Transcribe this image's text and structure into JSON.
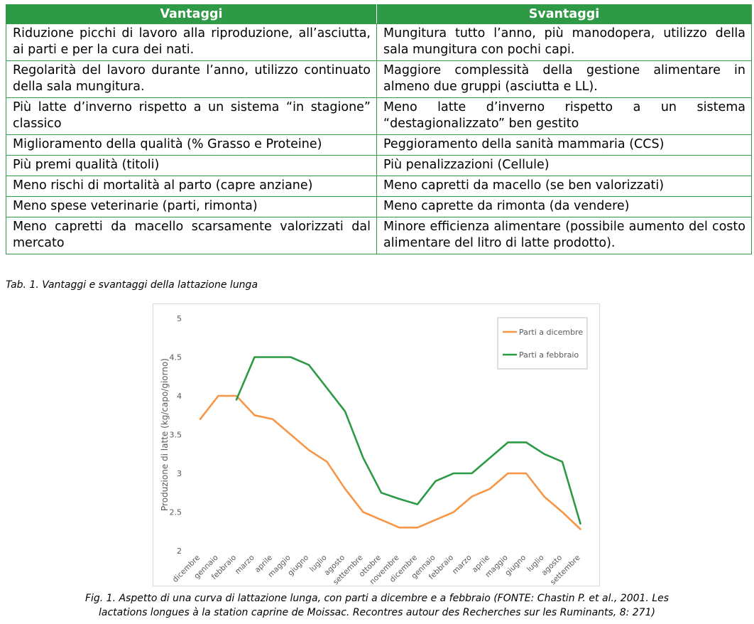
{
  "table": {
    "headers": [
      "Vantaggi",
      "Svantaggi"
    ],
    "rows": [
      [
        "Riduzione picchi di lavoro alla riproduzione, all’asciutta, ai parti e per la cura dei nati.",
        "Mungitura tutto l’anno, più manodopera, utilizzo della sala mungitura con pochi capi."
      ],
      [
        "Regolarità del lavoro durante l’anno, utilizzo continuato della sala mungitura.",
        "Maggiore complessità della gestione alimentare in almeno due gruppi (asciutta e LL)."
      ],
      [
        "Più latte d’inverno rispetto a un sistema “in stagione” classico",
        "Meno latte d’inverno rispetto a un sistema “destagionalizzato” ben gestito"
      ],
      [
        "Miglioramento della qualità (% Grasso e Proteine)",
        "Peggioramento della sanità mammaria (CCS)"
      ],
      [
        "Più premi qualità (titoli)",
        "Più penalizzazioni (Cellule)"
      ],
      [
        "Meno rischi di mortalità al parto (capre anziane)",
        "Meno capretti da macello (se ben valorizzati)"
      ],
      [
        "Meno spese veterinarie (parti, rimonta)",
        "Meno caprette da rimonta (da vendere)"
      ],
      [
        "Meno capretti da macello scarsamente valorizzati dal mercato",
        "Minore efficienza alimentare (possibile aumento del costo alimentare del litro di latte prodotto)."
      ]
    ],
    "caption": "Tab. 1. Vantaggi e svantaggi della lattazione lunga"
  },
  "chart_data": {
    "type": "line",
    "categories": [
      "dicembre",
      "gennaio",
      "febbraio",
      "marzo",
      "aprile",
      "maggio",
      "giugno",
      "luglio",
      "agosto",
      "settembre",
      "ottobre",
      "novembre",
      "dicembre",
      "gennaio",
      "febbraio",
      "marzo",
      "aprile",
      "maggio",
      "giugno",
      "luglio",
      "agosto",
      "settembre"
    ],
    "series": [
      {
        "name": "Parti a dicembre",
        "color": "#f79646",
        "values": [
          3.7,
          4.0,
          4.0,
          3.75,
          3.7,
          3.5,
          3.3,
          3.15,
          2.8,
          2.5,
          2.4,
          2.3,
          2.3,
          2.4,
          2.5,
          2.7,
          2.8,
          3.0,
          3.0,
          2.7,
          2.5,
          2.28
        ]
      },
      {
        "name": "Parti a febbraio",
        "color": "#2c9a45",
        "values": [
          null,
          null,
          3.95,
          4.5,
          4.5,
          4.5,
          4.4,
          4.1,
          3.8,
          3.2,
          2.75,
          2.67,
          2.6,
          2.9,
          3.0,
          3.0,
          3.2,
          3.4,
          3.4,
          3.25,
          3.15,
          2.35
        ]
      }
    ],
    "ylabel": "Produzione di latte (kg/capo/giorno)",
    "ylim": [
      2,
      5
    ],
    "yticks": [
      2,
      2.5,
      3,
      3.5,
      4,
      4.5,
      5
    ],
    "ytick_labels": [
      "2",
      "2.5",
      "3",
      "3.5",
      "4",
      "4.5",
      "5"
    ],
    "grid": false,
    "legend": "top-right"
  },
  "figure_caption": {
    "line1": "Fig. 1. Aspetto di una curva di lattazione lunga, con parti a dicembre e a febbraio (FONTE: Chastin P. et al., 2001. Les",
    "line2": "lactations longues à la station caprine de Moissac. Recontres autour des Recherches sur les Ruminants, 8: 271)"
  }
}
